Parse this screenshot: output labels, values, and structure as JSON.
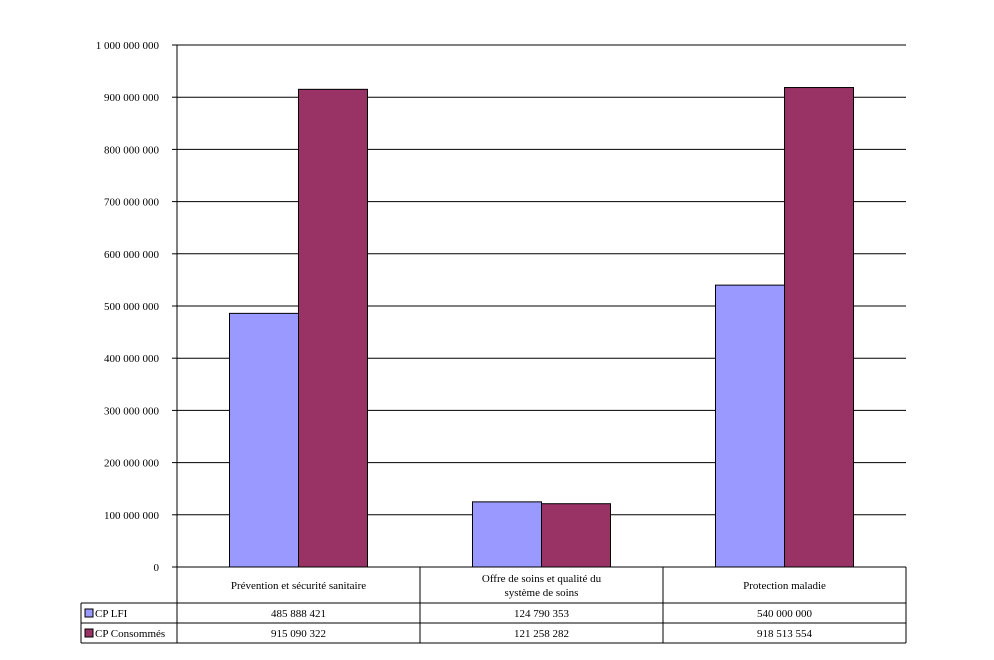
{
  "chart_data": {
    "type": "bar",
    "title": "",
    "xlabel": "",
    "ylabel": "",
    "ylim": [
      0,
      1000000000
    ],
    "yticks": [
      0,
      100000000,
      200000000,
      300000000,
      400000000,
      500000000,
      600000000,
      700000000,
      800000000,
      900000000,
      1000000000
    ],
    "ytick_labels": [
      "0",
      "100 000 000",
      "200 000 000",
      "300 000 000",
      "400 000 000",
      "500 000 000",
      "600 000 000",
      "700 000 000",
      "800 000 000",
      "900 000 000",
      "1 000 000 000"
    ],
    "grid": true,
    "legend": "data-table",
    "categories": [
      [
        "Prévention et sécurité sanitaire"
      ],
      [
        "Offre de soins et qualité du",
        "système de soins"
      ],
      [
        "Protection maladie"
      ]
    ],
    "series": [
      {
        "name": "CP LFI",
        "color": "#9999ff",
        "values": [
          485888421,
          124790353,
          540000000
        ],
        "labels": [
          "485 888 421",
          "124 790 353",
          "540 000 000"
        ]
      },
      {
        "name": "CP Consommés",
        "color": "#993366",
        "values": [
          915090322,
          121258282,
          918513554
        ],
        "labels": [
          "915 090 322",
          "121 258 282",
          "918 513 554"
        ]
      }
    ]
  }
}
